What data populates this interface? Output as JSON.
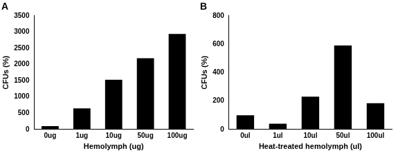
{
  "chart_data": [
    {
      "type": "bar",
      "title": "A",
      "x_label": "Hemolymph (ug)",
      "y_label": "CFUs (%)",
      "categories": [
        "0ug",
        "1ug",
        "10ug",
        "50ug",
        "100ug"
      ],
      "values": [
        100,
        650,
        1530,
        2190,
        2940
      ],
      "color": "#000000",
      "ylim": [
        0,
        3500
      ],
      "yticks": [
        0,
        500,
        1000,
        1500,
        2000,
        2500,
        3000,
        3500
      ],
      "grid": false
    },
    {
      "type": "bar",
      "title": "B",
      "x_label": "Heat-treated hemolymph (ul)",
      "y_label": "CFUs (%)",
      "categories": [
        "0ul",
        "1ul",
        "10ul",
        "50ul",
        "100ul"
      ],
      "values": [
        100,
        40,
        230,
        590,
        185
      ],
      "color": "#000000",
      "ylim": [
        0,
        800
      ],
      "yticks": [
        0,
        200,
        400,
        600,
        800
      ],
      "grid": false
    }
  ]
}
